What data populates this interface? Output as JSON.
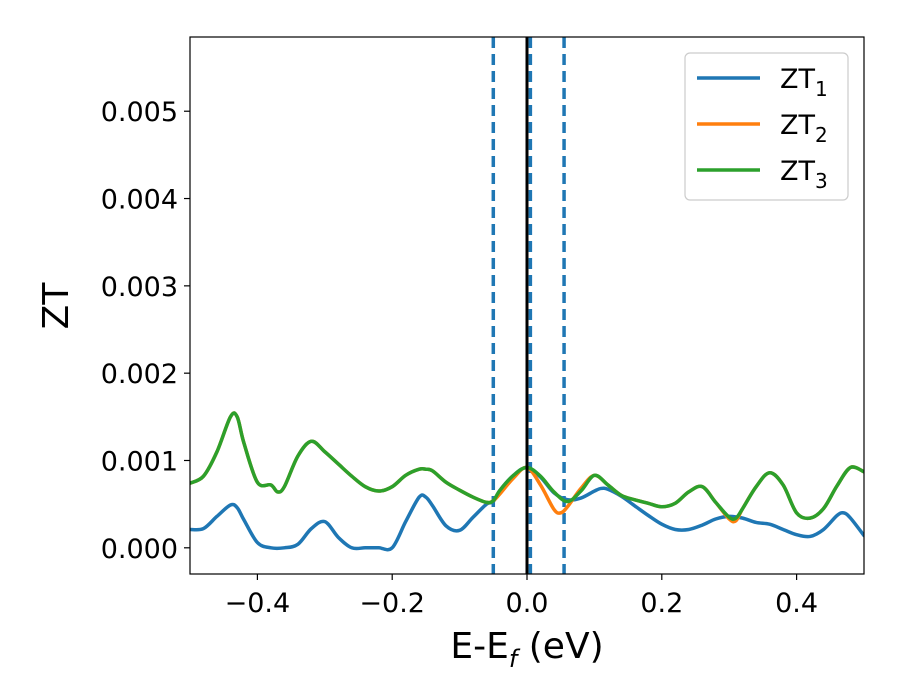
{
  "chart_data": {
    "type": "line",
    "title": "",
    "xlabel": "E-E",
    "xlabel_sub": "f",
    "xlabel_unit": " (eV)",
    "ylabel": "ZT",
    "xlim": [
      -0.5,
      0.5
    ],
    "ylim": [
      -0.0003,
      0.00585
    ],
    "x_ticks": [
      -0.4,
      -0.2,
      0.0,
      0.2,
      0.4
    ],
    "x_tick_labels": [
      "−0.4",
      "−0.2",
      "0.0",
      "0.2",
      "0.4"
    ],
    "y_ticks": [
      0.0,
      0.001,
      0.002,
      0.003,
      0.004,
      0.005
    ],
    "y_tick_labels": [
      "0.000",
      "0.001",
      "0.002",
      "0.003",
      "0.004",
      "0.005"
    ],
    "grid": false,
    "legend": "upper right",
    "series": [
      {
        "name": "ZT",
        "name_sub": "1",
        "color": "#1f77b4",
        "x": [
          -0.5,
          -0.48,
          -0.46,
          -0.44,
          -0.43,
          -0.42,
          -0.4,
          -0.38,
          -0.36,
          -0.34,
          -0.32,
          -0.3,
          -0.28,
          -0.26,
          -0.24,
          -0.22,
          -0.2,
          -0.18,
          -0.16,
          -0.15,
          -0.14,
          -0.12,
          -0.1,
          -0.08,
          -0.06,
          -0.05,
          -0.04,
          -0.02,
          0.0,
          0.02,
          0.04,
          0.06,
          0.08,
          0.1,
          0.11,
          0.12,
          0.14,
          0.16,
          0.18,
          0.2,
          0.22,
          0.24,
          0.26,
          0.28,
          0.3,
          0.32,
          0.34,
          0.36,
          0.38,
          0.4,
          0.42,
          0.44,
          0.46,
          0.47,
          0.48,
          0.5
        ],
        "y": [
          0.00021,
          0.00022,
          0.00036,
          0.00049,
          0.00046,
          0.00032,
          6e-05,
          0.0,
          0.0,
          4e-05,
          0.00022,
          0.0003,
          0.00012,
          0.0,
          0.0,
          0.0,
          0.0,
          0.0003,
          0.00058,
          0.00058,
          0.00048,
          0.00025,
          0.0002,
          0.00035,
          0.0005,
          0.00053,
          0.00066,
          0.00083,
          0.00092,
          0.00081,
          0.00063,
          0.00055,
          0.00057,
          0.00065,
          0.00068,
          0.00067,
          0.00059,
          0.00048,
          0.00037,
          0.00027,
          0.00021,
          0.00021,
          0.00026,
          0.00033,
          0.00036,
          0.00034,
          0.00029,
          0.00027,
          0.00021,
          0.00015,
          0.00013,
          0.00021,
          0.00037,
          0.0004,
          0.00034,
          0.00014
        ]
      },
      {
        "name": "ZT",
        "name_sub": "2",
        "color": "#ff7f0e",
        "x": [
          -0.5,
          -0.48,
          -0.46,
          -0.44,
          -0.43,
          -0.42,
          -0.4,
          -0.38,
          -0.37,
          -0.36,
          -0.34,
          -0.32,
          -0.3,
          -0.28,
          -0.26,
          -0.24,
          -0.22,
          -0.2,
          -0.18,
          -0.16,
          -0.15,
          -0.14,
          -0.12,
          -0.1,
          -0.08,
          -0.06,
          -0.05,
          -0.04,
          -0.02,
          0.0,
          0.02,
          0.04,
          0.05,
          0.06,
          0.08,
          0.1,
          0.12,
          0.14,
          0.16,
          0.18,
          0.2,
          0.22,
          0.24,
          0.26,
          0.28,
          0.3,
          0.31,
          0.32,
          0.34,
          0.36,
          0.38,
          0.4,
          0.42,
          0.44,
          0.46,
          0.48,
          0.5
        ],
        "y": [
          0.00074,
          0.00082,
          0.0011,
          0.0015,
          0.0015,
          0.0012,
          0.00075,
          0.00072,
          0.00064,
          0.0007,
          0.00105,
          0.00122,
          0.0011,
          0.00096,
          0.00082,
          0.0007,
          0.00065,
          0.0007,
          0.00083,
          0.0009,
          0.0009,
          0.00088,
          0.00075,
          0.00066,
          0.00058,
          0.00052,
          0.00054,
          0.00062,
          0.0008,
          0.00092,
          0.00072,
          0.00044,
          0.0004,
          0.00047,
          0.00068,
          0.00083,
          0.00072,
          0.0006,
          0.00055,
          0.00051,
          0.00047,
          0.00051,
          0.00064,
          0.0007,
          0.00052,
          0.00033,
          0.00031,
          0.00045,
          0.0007,
          0.00086,
          0.00072,
          0.0004,
          0.00034,
          0.00045,
          0.00071,
          0.00092,
          0.00087
        ]
      },
      {
        "name": "ZT",
        "name_sub": "3",
        "color": "#2ca02c",
        "x": [
          -0.5,
          -0.48,
          -0.46,
          -0.44,
          -0.43,
          -0.42,
          -0.4,
          -0.38,
          -0.37,
          -0.36,
          -0.34,
          -0.32,
          -0.3,
          -0.28,
          -0.26,
          -0.24,
          -0.22,
          -0.2,
          -0.18,
          -0.16,
          -0.15,
          -0.14,
          -0.12,
          -0.1,
          -0.08,
          -0.06,
          -0.05,
          -0.04,
          -0.02,
          0.0,
          0.02,
          0.04,
          0.06,
          0.08,
          0.1,
          0.12,
          0.14,
          0.16,
          0.18,
          0.2,
          0.22,
          0.24,
          0.26,
          0.28,
          0.3,
          0.31,
          0.32,
          0.34,
          0.36,
          0.38,
          0.4,
          0.42,
          0.44,
          0.46,
          0.48,
          0.5
        ],
        "y": [
          0.00074,
          0.00082,
          0.0011,
          0.0015,
          0.0015,
          0.0012,
          0.00075,
          0.00072,
          0.00064,
          0.0007,
          0.00105,
          0.00122,
          0.0011,
          0.00096,
          0.00082,
          0.0007,
          0.00065,
          0.0007,
          0.00083,
          0.0009,
          0.0009,
          0.00088,
          0.00075,
          0.00066,
          0.00058,
          0.00052,
          0.00054,
          0.00066,
          0.00083,
          0.00092,
          0.00082,
          0.00064,
          0.00053,
          0.00065,
          0.00083,
          0.00072,
          0.0006,
          0.00055,
          0.00051,
          0.00047,
          0.00051,
          0.00064,
          0.0007,
          0.00052,
          0.00035,
          0.00034,
          0.00045,
          0.0007,
          0.00086,
          0.00072,
          0.0004,
          0.00034,
          0.00045,
          0.00071,
          0.00092,
          0.00087
        ]
      }
    ],
    "vlines": [
      {
        "x": -0.05,
        "style": "dashed",
        "color": "#1f77b4"
      },
      {
        "x": 0.005,
        "style": "dashed",
        "color": "#1f77b4"
      },
      {
        "x": 0.055,
        "style": "dashed",
        "color": "#1f77b4"
      },
      {
        "x": 0.0,
        "style": "solid",
        "color": "#000000"
      }
    ]
  }
}
